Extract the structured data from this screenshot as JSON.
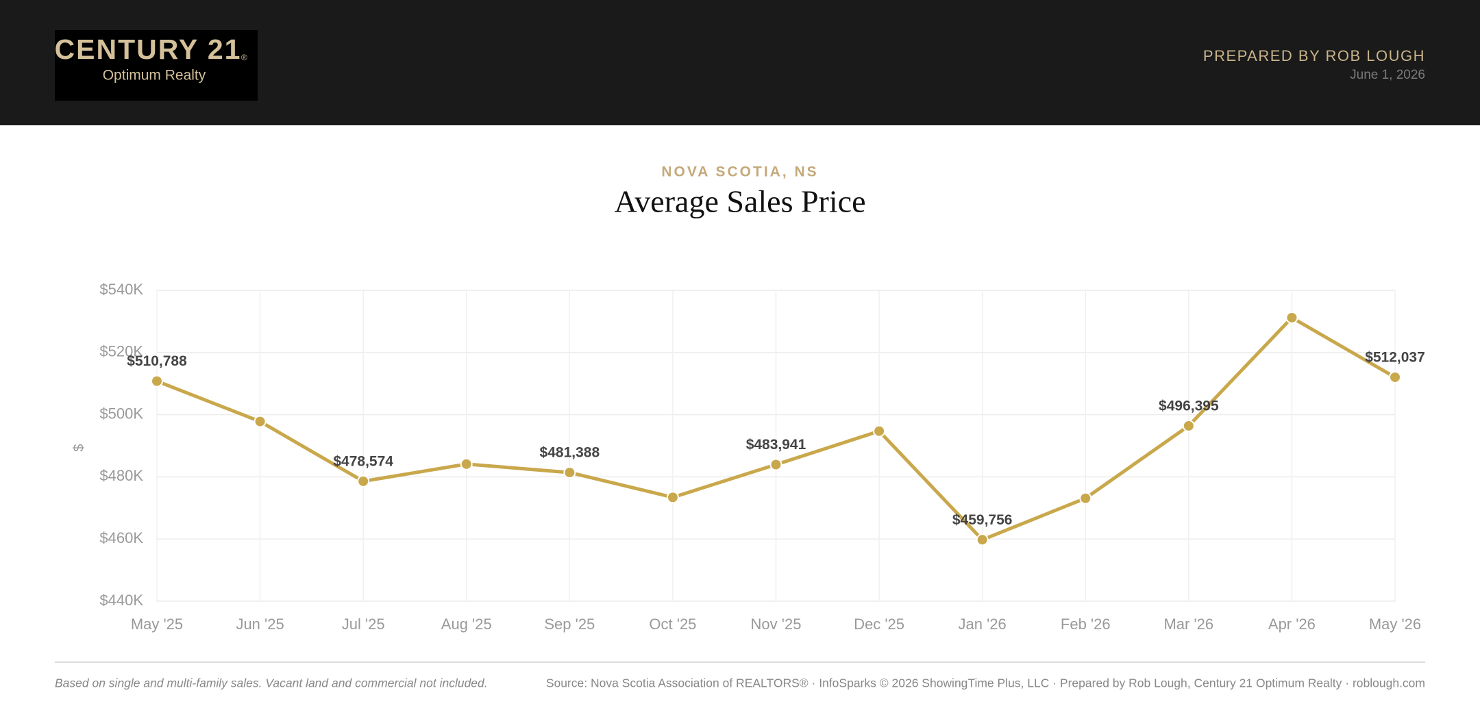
{
  "header": {
    "logo_brand": "CENTURY 21",
    "logo_mark": "®",
    "logo_sub": "Optimum Realty",
    "prepared_by": "PREPARED BY ROB LOUGH",
    "date": "June 1, 2026"
  },
  "chart_data": {
    "type": "line",
    "subtitle": "NOVA SCOTIA, NS",
    "title": "Average Sales Price",
    "y_label": "$",
    "categories": [
      "May '25",
      "Jun '25",
      "Jul '25",
      "Aug '25",
      "Sep '25",
      "Oct '25",
      "Nov '25",
      "Dec '25",
      "Jan '26",
      "Feb '26",
      "Mar '26",
      "Apr '26",
      "May '26"
    ],
    "series": [
      {
        "name": "Average Sales Price",
        "color": "#c9a84c",
        "values": [
          510788,
          497800,
          478574,
          484100,
          481388,
          473400,
          483941,
          494700,
          459756,
          473100,
          496395,
          531200,
          512037
        ],
        "value_labels": [
          "$510,788",
          null,
          "$478,574",
          null,
          "$481,388",
          null,
          "$483,941",
          null,
          "$459,756",
          null,
          "$496,395",
          null,
          "$512,037"
        ]
      }
    ],
    "ylim": [
      440000,
      540000
    ],
    "yticks": [
      {
        "value": 440000,
        "label": "$440K"
      },
      {
        "value": 460000,
        "label": "$460K"
      },
      {
        "value": 480000,
        "label": "$480K"
      },
      {
        "value": 500000,
        "label": "$500K"
      },
      {
        "value": 520000,
        "label": "$520K"
      },
      {
        "value": 540000,
        "label": "$540K"
      }
    ],
    "grid": true
  },
  "footer": {
    "note": "Based on single and multi-family sales. Vacant land and commercial not included.",
    "source": "Source: Nova Scotia Association of REALTORS® · InfoSparks © 2026 ShowingTime Plus, LLC · Prepared by Rob Lough, Century 21 Optimum Realty · roblough.com"
  }
}
